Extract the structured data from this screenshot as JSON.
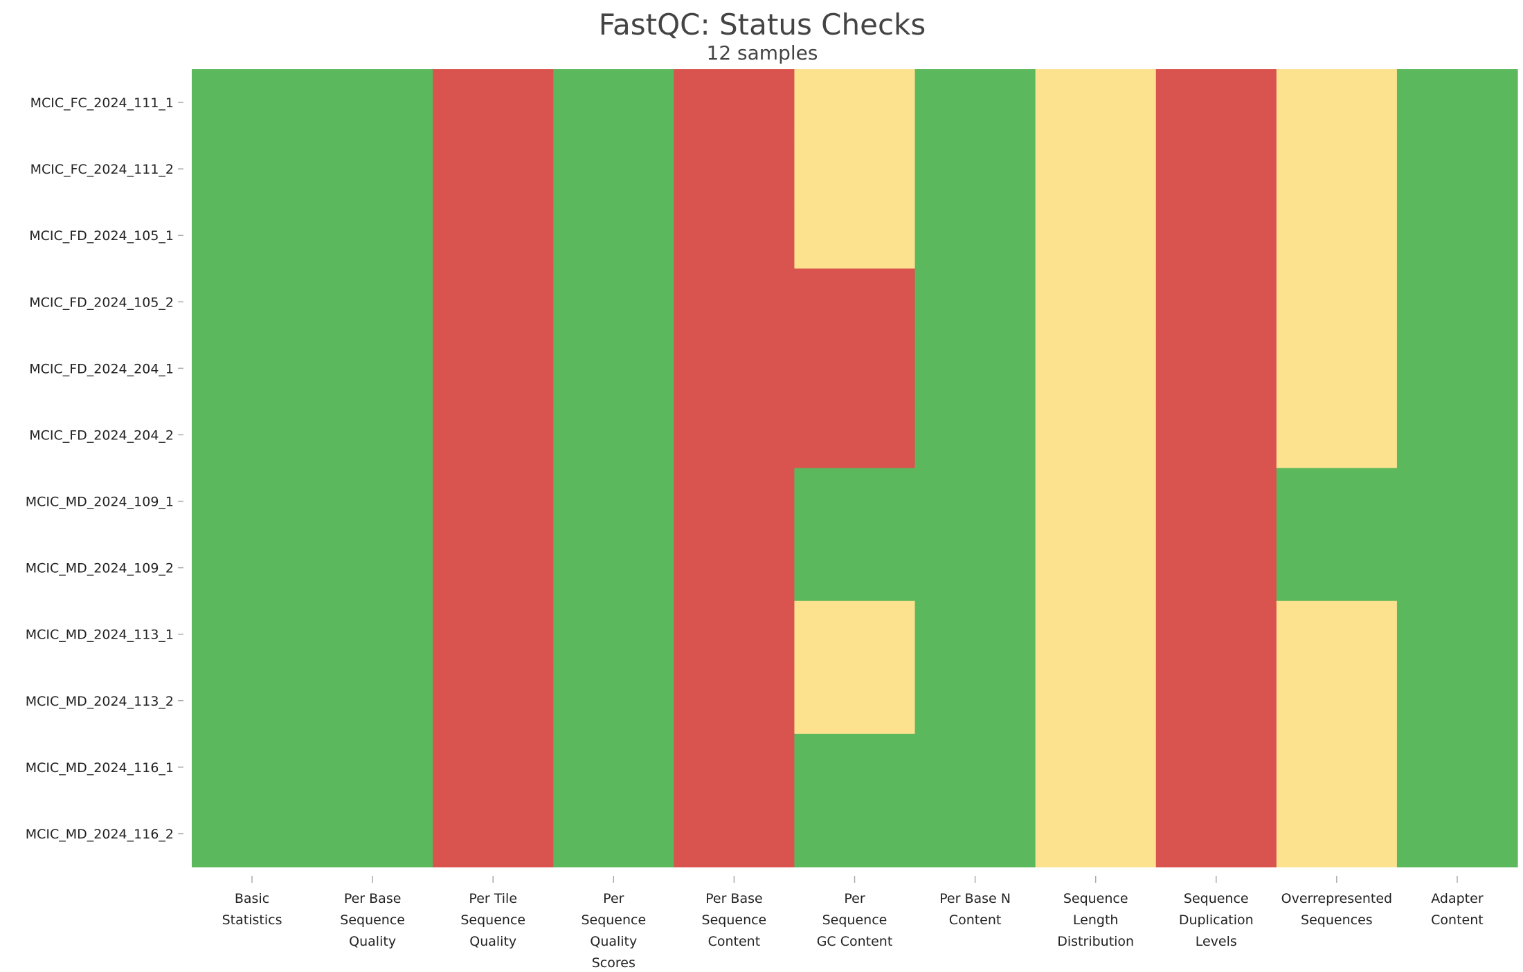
{
  "chart_data": {
    "type": "heatmap",
    "title": "FastQC: Status Checks",
    "subtitle": "12 samples",
    "columns": [
      "Basic Statistics",
      "Per Base Sequence Quality",
      "Per Tile Sequence Quality",
      "Per Sequence Quality Scores",
      "Per Base Sequence Content",
      "Per Sequence GC Content",
      "Per Base N Content",
      "Sequence Length Distribution",
      "Sequence Duplication Levels",
      "Overrepresented Sequences",
      "Adapter Content"
    ],
    "column_labels": [
      [
        "Basic",
        "Statistics"
      ],
      [
        "Per Base",
        "Sequence",
        "Quality"
      ],
      [
        "Per Tile",
        "Sequence",
        "Quality"
      ],
      [
        "Per",
        "Sequence",
        "Quality",
        "Scores"
      ],
      [
        "Per Base",
        "Sequence",
        "Content"
      ],
      [
        "Per",
        "Sequence",
        "GC Content"
      ],
      [
        "Per Base N",
        "Content"
      ],
      [
        "Sequence",
        "Length",
        "Distribution"
      ],
      [
        "Sequence",
        "Duplication",
        "Levels"
      ],
      [
        "Overrepresented",
        "Sequences"
      ],
      [
        "Adapter",
        "Content"
      ]
    ],
    "samples": [
      "MCIC_FC_2024_111_1",
      "MCIC_FC_2024_111_2",
      "MCIC_FD_2024_105_1",
      "MCIC_FD_2024_105_2",
      "MCIC_FD_2024_204_1",
      "MCIC_FD_2024_204_2",
      "MCIC_MD_2024_109_1",
      "MCIC_MD_2024_109_2",
      "MCIC_MD_2024_113_1",
      "MCIC_MD_2024_113_2",
      "MCIC_MD_2024_116_1",
      "MCIC_MD_2024_116_2"
    ],
    "status": [
      [
        "pass",
        "pass",
        "fail",
        "pass",
        "fail",
        "warn",
        "pass",
        "warn",
        "fail",
        "warn",
        "pass"
      ],
      [
        "pass",
        "pass",
        "fail",
        "pass",
        "fail",
        "warn",
        "pass",
        "warn",
        "fail",
        "warn",
        "pass"
      ],
      [
        "pass",
        "pass",
        "fail",
        "pass",
        "fail",
        "warn",
        "pass",
        "warn",
        "fail",
        "warn",
        "pass"
      ],
      [
        "pass",
        "pass",
        "fail",
        "pass",
        "fail",
        "fail",
        "pass",
        "warn",
        "fail",
        "warn",
        "pass"
      ],
      [
        "pass",
        "pass",
        "fail",
        "pass",
        "fail",
        "fail",
        "pass",
        "warn",
        "fail",
        "warn",
        "pass"
      ],
      [
        "pass",
        "pass",
        "fail",
        "pass",
        "fail",
        "fail",
        "pass",
        "warn",
        "fail",
        "warn",
        "pass"
      ],
      [
        "pass",
        "pass",
        "fail",
        "pass",
        "fail",
        "pass",
        "pass",
        "warn",
        "fail",
        "pass",
        "pass"
      ],
      [
        "pass",
        "pass",
        "fail",
        "pass",
        "fail",
        "pass",
        "pass",
        "warn",
        "fail",
        "pass",
        "pass"
      ],
      [
        "pass",
        "pass",
        "fail",
        "pass",
        "fail",
        "warn",
        "pass",
        "warn",
        "fail",
        "warn",
        "pass"
      ],
      [
        "pass",
        "pass",
        "fail",
        "pass",
        "fail",
        "warn",
        "pass",
        "warn",
        "fail",
        "warn",
        "pass"
      ],
      [
        "pass",
        "pass",
        "fail",
        "pass",
        "fail",
        "pass",
        "pass",
        "warn",
        "fail",
        "warn",
        "pass"
      ],
      [
        "pass",
        "pass",
        "fail",
        "pass",
        "fail",
        "pass",
        "pass",
        "warn",
        "fail",
        "warn",
        "pass"
      ]
    ],
    "colors": {
      "pass": "#5cb85c",
      "warn": "#fce28f",
      "fail": "#d9534f"
    },
    "grid": false,
    "legend": "none"
  }
}
